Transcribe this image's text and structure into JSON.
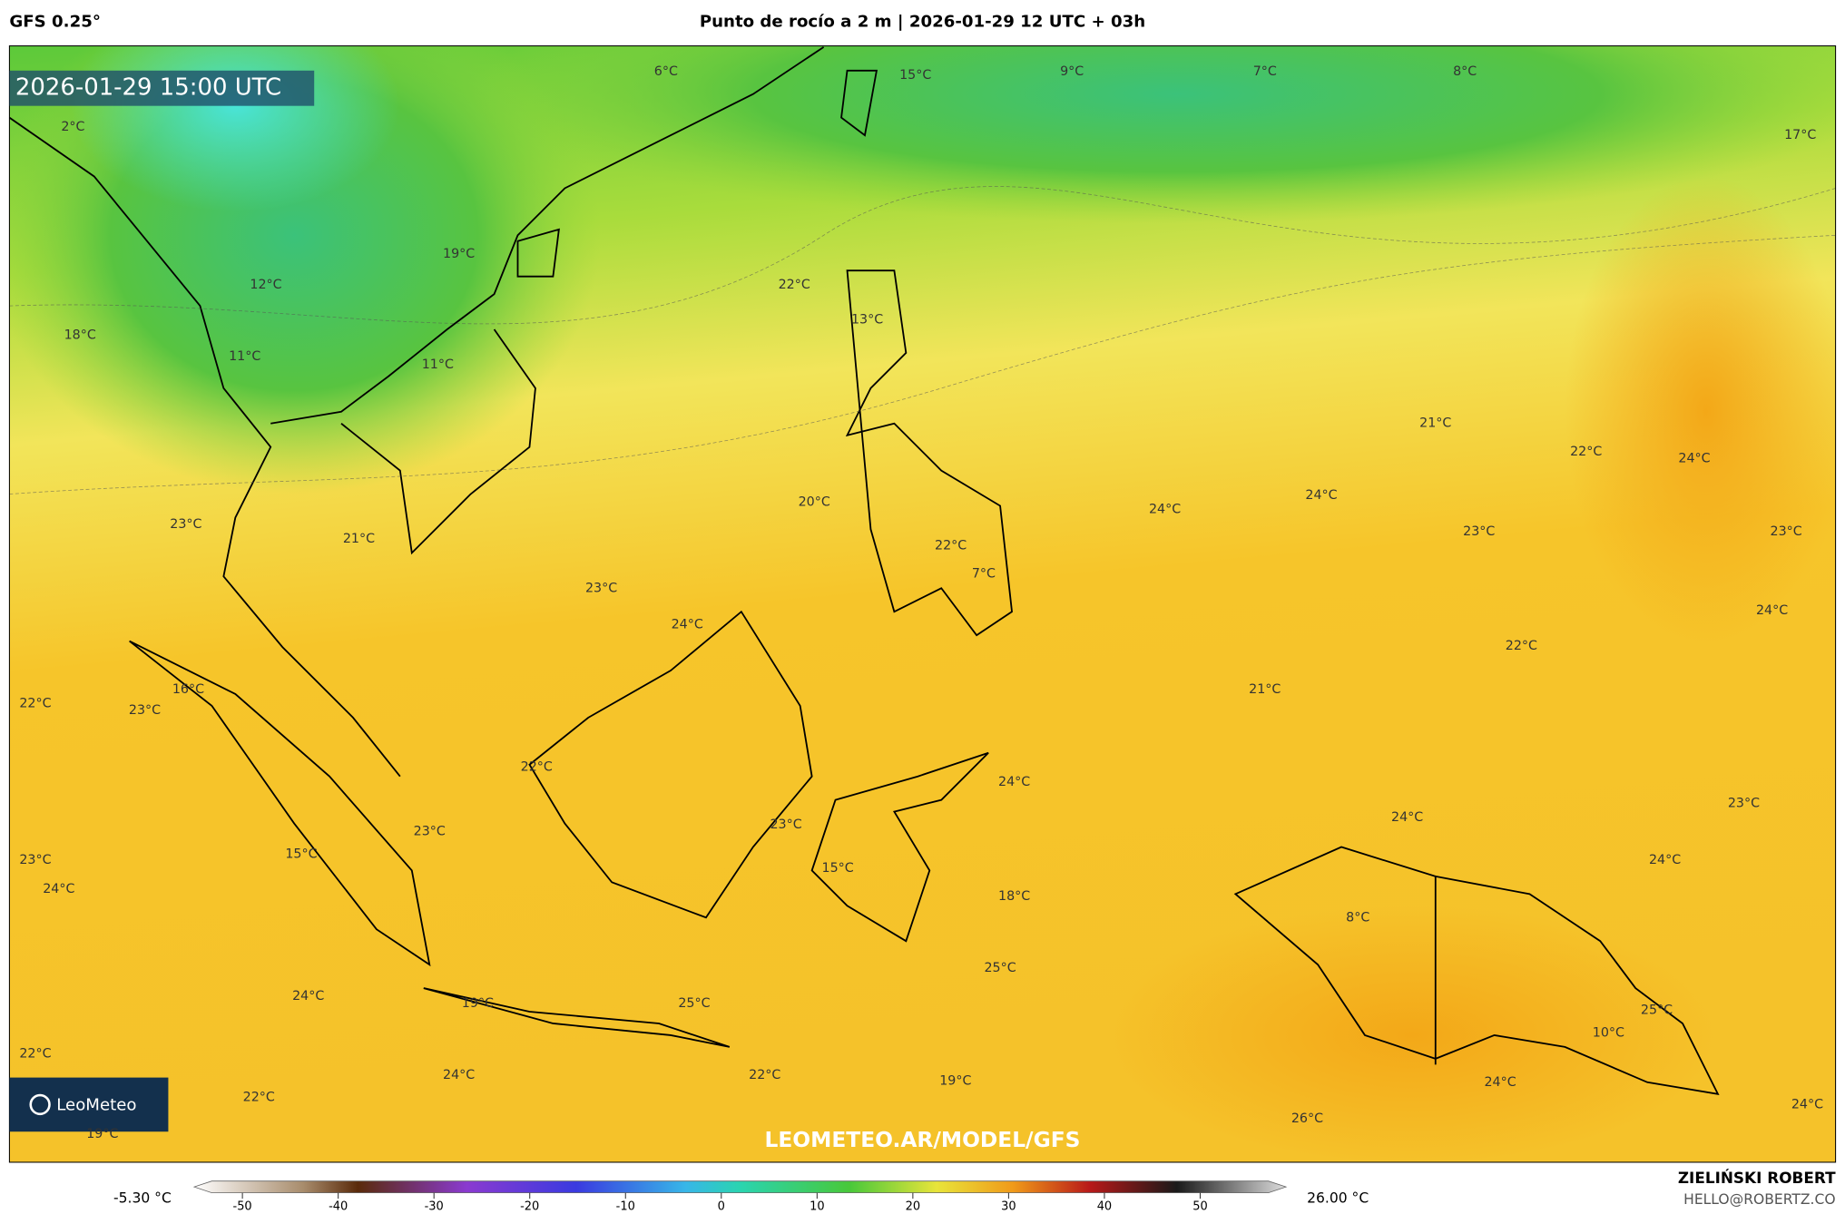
{
  "header": {
    "model": "GFS 0.25°",
    "title": "Punto de rocío a 2 m | 2026-01-29 12 UTC + 03h"
  },
  "map": {
    "timestamp": "2026-01-29 15:00 UTC",
    "watermark": "LEOMETEO.AR/MODEL/GFS",
    "logo": "LeoMeteo",
    "labels": [
      "2°C",
      "6°C",
      "15°C",
      "9°C",
      "7°C",
      "8°C",
      "17°C",
      "19°C",
      "12°C",
      "22°C",
      "13°C",
      "18°C",
      "11°C",
      "11°C",
      "21°C",
      "22°C",
      "24°C",
      "20°C",
      "24°C",
      "24°C",
      "23°C",
      "21°C",
      "23°C",
      "23°C",
      "22°C",
      "7°C",
      "23°C",
      "24°C",
      "24°C",
      "22°C",
      "21°C",
      "16°C",
      "22°C",
      "23°C",
      "22°C",
      "24°C",
      "23°C",
      "24°C",
      "23°C",
      "23°C",
      "15°C",
      "23°C",
      "24°C",
      "15°C",
      "24°C",
      "18°C",
      "8°C",
      "25°C",
      "24°C",
      "19°C",
      "25°C",
      "25°C",
      "10°C",
      "22°C",
      "24°C",
      "22°C",
      "19°C",
      "24°C",
      "22°C",
      "26°C",
      "24°C",
      "19°C"
    ]
  },
  "colorbar": {
    "min_label": "-5.30 °C",
    "max_label": "26.00 °C",
    "ticks": [
      -50,
      -40,
      -30,
      -20,
      -10,
      0,
      10,
      20,
      30,
      40,
      50
    ]
  },
  "credits": {
    "author": "ZIELIŃSKI ROBERT",
    "email": "HELLO@ROBERTZ.CO"
  }
}
